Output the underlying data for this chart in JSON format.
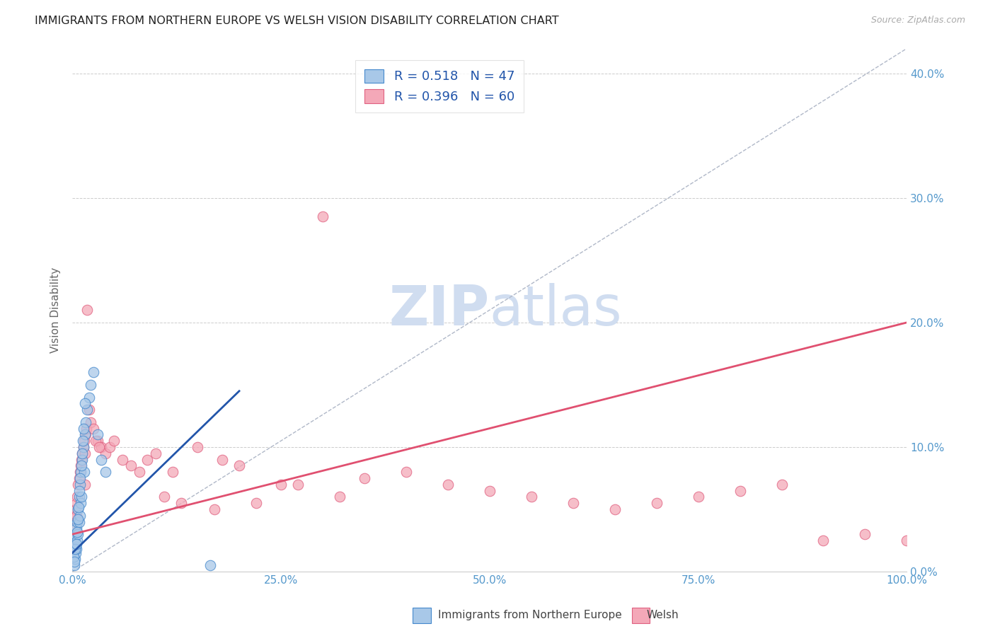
{
  "title": "IMMIGRANTS FROM NORTHERN EUROPE VS WELSH VISION DISABILITY CORRELATION CHART",
  "source": "Source: ZipAtlas.com",
  "ylabel": "Vision Disability",
  "blue_label": "Immigrants from Northern Europe",
  "pink_label": "Welsh",
  "blue_R": 0.518,
  "blue_N": 47,
  "pink_R": 0.396,
  "pink_N": 60,
  "blue_color": "#a8c8e8",
  "pink_color": "#f4a8b8",
  "blue_edge_color": "#4488cc",
  "pink_edge_color": "#e06080",
  "blue_line_color": "#2255aa",
  "pink_line_color": "#e05070",
  "ref_line_color": "#b0b8c8",
  "title_color": "#222222",
  "axis_color": "#5599cc",
  "legend_text_color": "#2255aa",
  "watermark_color": "#d0ddf0",
  "background_color": "#ffffff",
  "blue_scatter_x": [
    0.1,
    0.2,
    0.2,
    0.3,
    0.3,
    0.4,
    0.4,
    0.5,
    0.5,
    0.6,
    0.6,
    0.7,
    0.7,
    0.8,
    0.8,
    0.9,
    0.9,
    1.0,
    1.0,
    1.1,
    1.2,
    1.3,
    1.4,
    1.5,
    1.6,
    1.8,
    2.0,
    2.2,
    2.5,
    3.0,
    3.5,
    4.0,
    0.15,
    0.25,
    0.35,
    0.45,
    0.55,
    0.65,
    0.75,
    0.85,
    0.95,
    1.05,
    1.15,
    1.25,
    1.35,
    1.55,
    16.5
  ],
  "blue_scatter_y": [
    1.5,
    0.5,
    2.5,
    1.0,
    3.0,
    1.5,
    2.0,
    1.8,
    3.5,
    2.5,
    4.0,
    3.0,
    5.0,
    4.0,
    6.0,
    4.5,
    7.0,
    5.5,
    8.0,
    6.0,
    9.0,
    10.0,
    8.0,
    11.0,
    12.0,
    13.0,
    14.0,
    15.0,
    16.0,
    11.0,
    9.0,
    8.0,
    1.2,
    0.8,
    1.8,
    2.2,
    3.2,
    4.2,
    5.2,
    6.5,
    7.5,
    8.5,
    9.5,
    10.5,
    11.5,
    13.5,
    0.5
  ],
  "pink_scatter_x": [
    0.2,
    0.3,
    0.4,
    0.5,
    0.6,
    0.7,
    0.8,
    0.9,
    1.0,
    1.1,
    1.2,
    1.3,
    1.4,
    1.5,
    1.6,
    1.7,
    1.8,
    2.0,
    2.2,
    2.5,
    3.0,
    3.5,
    4.0,
    4.5,
    5.0,
    6.0,
    7.0,
    8.0,
    9.0,
    10.0,
    12.0,
    15.0,
    18.0,
    20.0,
    25.0,
    30.0,
    35.0,
    40.0,
    45.0,
    50.0,
    55.0,
    60.0,
    65.0,
    70.0,
    75.0,
    80.0,
    85.0,
    90.0,
    95.0,
    27.0,
    32.0,
    22.0,
    17.0,
    13.0,
    11.0,
    2.8,
    3.2,
    1.5,
    0.5,
    100.0
  ],
  "pink_scatter_y": [
    3.5,
    4.5,
    5.0,
    5.5,
    6.0,
    7.0,
    7.5,
    8.0,
    8.5,
    9.0,
    9.5,
    10.0,
    10.5,
    9.5,
    11.0,
    11.5,
    21.0,
    13.0,
    12.0,
    11.5,
    10.5,
    10.0,
    9.5,
    10.0,
    10.5,
    9.0,
    8.5,
    8.0,
    9.0,
    9.5,
    8.0,
    10.0,
    9.0,
    8.5,
    7.0,
    28.5,
    7.5,
    8.0,
    7.0,
    6.5,
    6.0,
    5.5,
    5.0,
    5.5,
    6.0,
    6.5,
    7.0,
    2.5,
    3.0,
    7.0,
    6.0,
    5.5,
    5.0,
    5.5,
    6.0,
    10.5,
    10.0,
    7.0,
    4.5,
    2.5
  ],
  "xmin": 0.0,
  "xmax": 100.0,
  "ymin": 0.0,
  "ymax": 42.0,
  "yticks": [
    0,
    10,
    20,
    30,
    40
  ],
  "xticks": [
    0,
    25,
    50,
    75,
    100
  ],
  "blue_reg_x0": 0.0,
  "blue_reg_x1": 20.0,
  "blue_reg_y0": 1.5,
  "blue_reg_y1": 14.5,
  "pink_reg_x0": 0.0,
  "pink_reg_x1": 100.0,
  "pink_reg_y0": 3.0,
  "pink_reg_y1": 20.0,
  "figsize": [
    14.06,
    8.92
  ],
  "dpi": 100
}
